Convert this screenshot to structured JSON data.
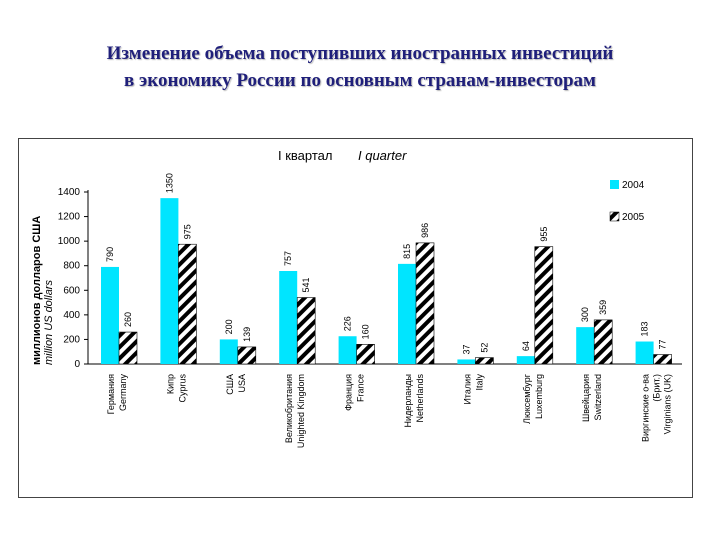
{
  "title": {
    "line1": "Изменение объема поступивших иностранных инвестиций",
    "line2": "в экономику России по основным странам-инвесторам"
  },
  "colors": {
    "series_2004": "#00e5ff",
    "series_2005_fill": "#ffffff",
    "series_2005_hatch": "#000000",
    "title": "#1f1f7a"
  },
  "chart_data": {
    "type": "bar",
    "title_ru": "I квартал",
    "title_en": "I quarter",
    "ylabel_ru": "миллионов долларов США",
    "ylabel_en": "million US dollars",
    "ylim": [
      0,
      1400
    ],
    "yticks": [
      0,
      200,
      400,
      600,
      800,
      1000,
      1200,
      1400
    ],
    "legend_placement": "top-right",
    "categories": [
      {
        "ru": "Германия",
        "en": "Germany"
      },
      {
        "ru": "Кипр",
        "en": "Cyprus"
      },
      {
        "ru": "США",
        "en": "USA"
      },
      {
        "ru": "Великобритания",
        "en": "Unighted Kingdom"
      },
      {
        "ru": "Франция",
        "en": "France"
      },
      {
        "ru": "Нидерланды",
        "en": "Netherlands"
      },
      {
        "ru": "Италия",
        "en": "Italy"
      },
      {
        "ru": "Люксембург",
        "en": "Luxemburg"
      },
      {
        "ru": "Швейцария",
        "en": "Switzerland"
      },
      {
        "ru": "Виргинские о-ва",
        "en": "Virginians (UK)",
        "extra": "(Брит.)"
      }
    ],
    "series": [
      {
        "name": "2004",
        "values": [
          790,
          1350,
          200,
          757,
          226,
          815,
          37,
          64,
          300,
          183
        ]
      },
      {
        "name": "2005",
        "values": [
          260,
          975,
          139,
          541,
          160,
          986,
          52,
          955,
          359,
          77
        ]
      }
    ]
  }
}
